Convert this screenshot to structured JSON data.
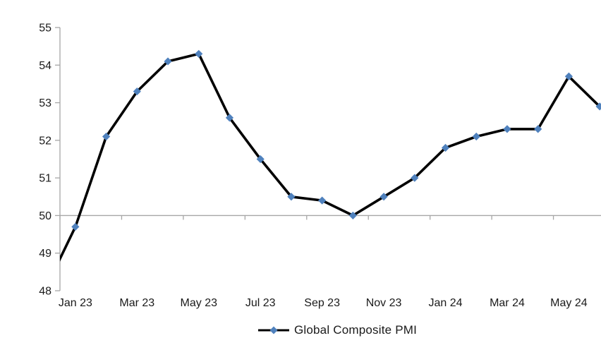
{
  "chart_data": {
    "type": "line",
    "title": "",
    "xlabel": "",
    "ylabel": "",
    "ylim": [
      48,
      55
    ],
    "y_ticks": [
      "48",
      "49",
      "50",
      "51",
      "52",
      "53",
      "54",
      "55"
    ],
    "x_tick_labels": [
      "Jan 23",
      "Mar 23",
      "May 23",
      "Jul 23",
      "Sep 23",
      "Nov 23",
      "Jan 24",
      "Mar 24",
      "May 24"
    ],
    "categories": [
      "Dec 22",
      "Jan 23",
      "Feb 23",
      "Mar 23",
      "Apr 23",
      "May 23",
      "Jun 23",
      "Jul 23",
      "Aug 23",
      "Sep 23",
      "Oct 23",
      "Nov 23",
      "Dec 23",
      "Jan 24",
      "Feb 24",
      "Mar 24",
      "Apr 24",
      "May 24",
      "Jun 24"
    ],
    "series": [
      {
        "name": "Global Composite PMI",
        "values": [
          48.0,
          49.7,
          52.1,
          53.3,
          54.1,
          54.3,
          52.6,
          51.5,
          50.5,
          50.4,
          50.0,
          50.5,
          51.0,
          51.8,
          52.1,
          52.3,
          52.3,
          53.7,
          52.9
        ]
      }
    ],
    "legend": {
      "position": "bottom-center",
      "label": "Global Composite PMI"
    },
    "grid": "off",
    "x_axis_crosses_at": 50,
    "marker_shape": "diamond"
  },
  "colors": {
    "line": "#000000",
    "marker": "#4F81BD",
    "axis": "#A6A6A6",
    "text": "#1A1A1A",
    "background": "#FFFFFF"
  }
}
